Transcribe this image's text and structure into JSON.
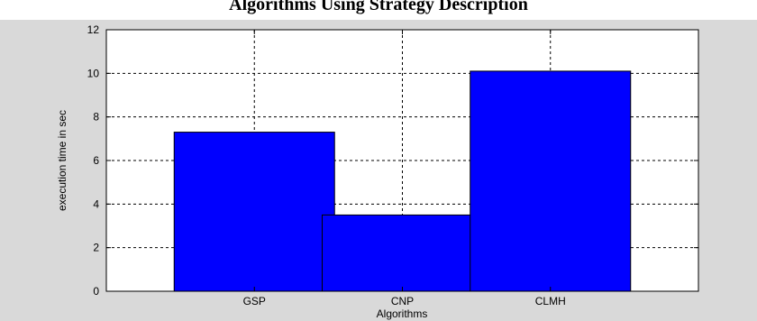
{
  "chart_data": {
    "type": "bar",
    "title": "Algorithms Using Strategy Description",
    "xlabel": "Algorithms",
    "ylabel": "execution time in sec",
    "categories": [
      "GSP",
      "CNP",
      "CLMH"
    ],
    "values": [
      7.3,
      3.5,
      10.1
    ],
    "ylim": [
      0,
      12
    ],
    "yticks": [
      0,
      2,
      4,
      6,
      8,
      10,
      12
    ],
    "ytick_labels": [
      "0",
      "2",
      "4",
      "6",
      "8",
      "10",
      "12"
    ],
    "grid": true,
    "legend": "none",
    "bar_color": "#0000ff",
    "background_color": "#d9d9d9",
    "plot_background": "#ffffff"
  }
}
